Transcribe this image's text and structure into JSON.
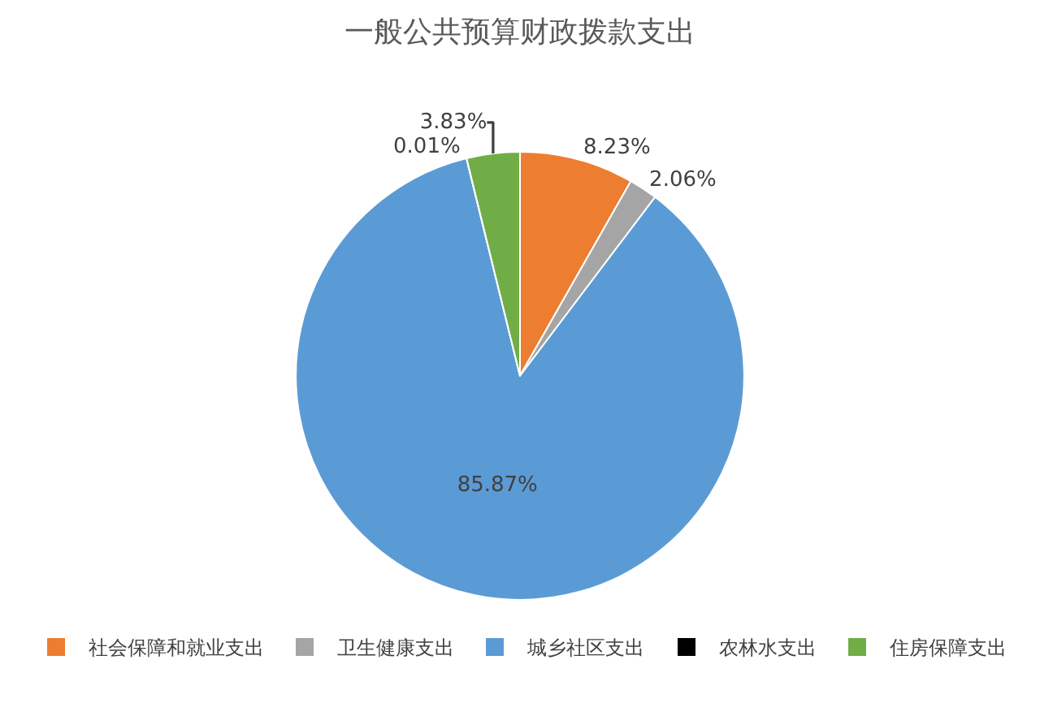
{
  "chart_data": {
    "type": "pie",
    "title": "一般公共预算财政拨款支出",
    "categories": [
      "社会保障和就业支出",
      "卫生健康支出",
      "城乡社区支出",
      "农林水支出",
      "住房保障支出"
    ],
    "values": [
      8.23,
      2.06,
      85.87,
      0.01,
      3.83
    ],
    "value_labels": [
      "8.23%",
      "2.06%",
      "85.87%",
      "0.01%",
      "3.83%"
    ],
    "colors": [
      "#ed7d31",
      "#a5a5a5",
      "#5b9bd5",
      "#000000",
      "#70ad47"
    ],
    "legend": "bottom"
  }
}
